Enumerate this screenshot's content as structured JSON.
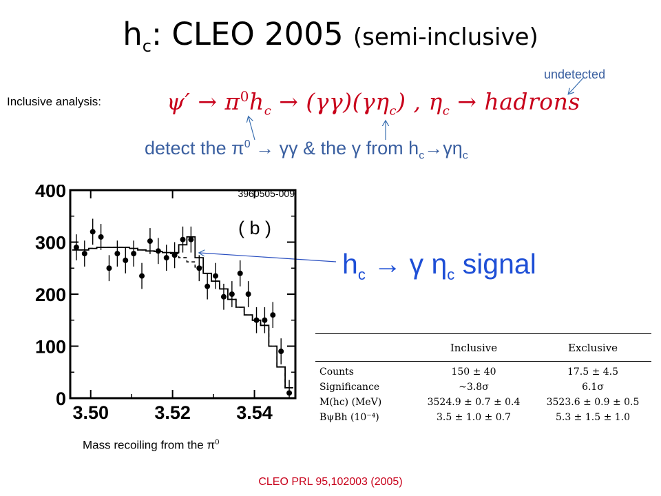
{
  "slide": {
    "title_main": "h",
    "title_sub": "c",
    "title_rest": ": CLEO 2005 ",
    "title_paren": "(semi-inclusive)",
    "undetected": "undetected",
    "inclusive_label": "Inclusive analysis:",
    "formula": {
      "psi": "ψ′ → π",
      "pi_sup": "0",
      "hc": "h",
      "hc_sub": "c",
      "arrow_gg": " → (γγ)(γη",
      "eta_sub": "c",
      "close": ") , η",
      "eta2_sub": "c",
      "tail": " → hadrons"
    },
    "detect": {
      "t1": "detect the π",
      "sup0": "0",
      "t2": " → γγ & the γ from h",
      "sub1": "c",
      "t3": "→γη",
      "sub2": "c"
    },
    "signal": {
      "t1": "h",
      "sub1": "c",
      "t2": " → γ η",
      "sub2": "c",
      "t3": " signal"
    },
    "mass_label": "Mass recoiling from the π",
    "mass_sup": "0",
    "reference": "CLEO PRL 95,102003 (2005)"
  },
  "plot": {
    "run_id": "3960505-009",
    "panel_label": "( b )",
    "y_ticks": [
      "400",
      "300",
      "200",
      "100",
      "0"
    ],
    "x_ticks": [
      "3.50",
      "3.52",
      "3.54"
    ],
    "ylim": [
      0,
      400
    ],
    "xlim": [
      3.495,
      3.55
    ]
  },
  "table": {
    "headers": [
      "",
      "Inclusive",
      "Exclusive"
    ],
    "rows": [
      [
        "Counts",
        "150 ± 40",
        "17.5 ± 4.5"
      ],
      [
        "Significance",
        "~3.8σ",
        "6.1σ"
      ],
      [
        "M(hc) (MeV)",
        "3524.9 ± 0.7 ± 0.4",
        "3523.6 ± 0.9 ± 0.5"
      ],
      [
        "BψBh (10⁻⁴)",
        "3.5 ± 1.0 ± 0.7",
        "5.3 ± 1.5 ± 1.0"
      ]
    ]
  },
  "chart_data": {
    "type": "scatter",
    "title": "",
    "xlabel": "Mass recoiling from the π0",
    "ylabel": "",
    "xlim": [
      3.495,
      3.55
    ],
    "ylim": [
      0,
      400
    ],
    "x": [
      3.4965,
      3.4985,
      3.5005,
      3.5025,
      3.5045,
      3.5065,
      3.5085,
      3.5105,
      3.5125,
      3.5145,
      3.5165,
      3.5185,
      3.5205,
      3.5225,
      3.5245,
      3.5265,
      3.5285,
      3.5305,
      3.5325,
      3.5345,
      3.5365,
      3.5385,
      3.5405,
      3.5425,
      3.5445,
      3.5465,
      3.5485
    ],
    "series": [
      {
        "name": "data",
        "values": [
          290,
          278,
          320,
          310,
          250,
          278,
          265,
          278,
          235,
          302,
          283,
          270,
          275,
          305,
          305,
          250,
          215,
          235,
          195,
          200,
          240,
          200,
          150,
          150,
          160,
          90,
          10
        ]
      },
      {
        "name": "fit",
        "values": [
          285,
          285,
          288,
          290,
          290,
          290,
          290,
          288,
          285,
          283,
          282,
          280,
          280,
          295,
          310,
          270,
          240,
          225,
          210,
          190,
          175,
          160,
          150,
          140,
          100,
          60,
          20
        ]
      },
      {
        "name": "background",
        "values": [
          285,
          285,
          288,
          290,
          290,
          290,
          290,
          288,
          285,
          283,
          282,
          280,
          278,
          270,
          262,
          252,
          240,
          225,
          210,
          190,
          175,
          160,
          150,
          140,
          100,
          60,
          20
        ]
      }
    ],
    "errors": [
      25,
      25,
      25,
      25,
      25,
      25,
      25,
      25,
      25,
      25,
      25,
      25,
      25,
      25,
      25,
      25,
      25,
      25,
      25,
      25,
      25,
      25,
      25,
      25,
      25,
      25,
      25
    ]
  }
}
